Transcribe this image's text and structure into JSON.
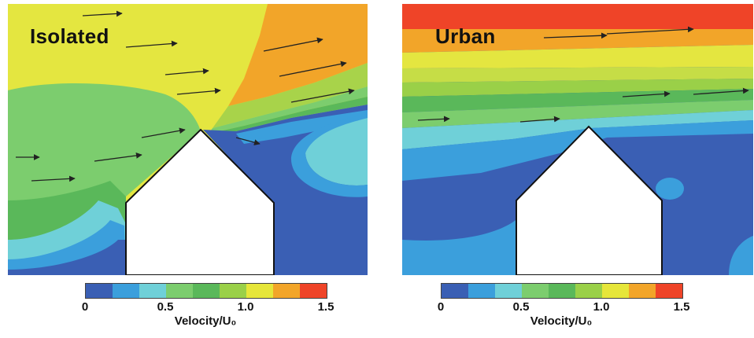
{
  "panels": {
    "isolated": {
      "title": "Isolated"
    },
    "urban": {
      "title": "Urban"
    }
  },
  "colorbar": {
    "label": "Velocity/U₀",
    "ticks": [
      "0",
      "0.5",
      "1.0",
      "1.5"
    ],
    "colors": [
      "#3a5fb4",
      "#3b9fdc",
      "#6fd0d8",
      "#7ccd6e",
      "#5ab85a",
      "#9ad048",
      "#e6e63a",
      "#f2a529",
      "#ef4428"
    ]
  }
}
